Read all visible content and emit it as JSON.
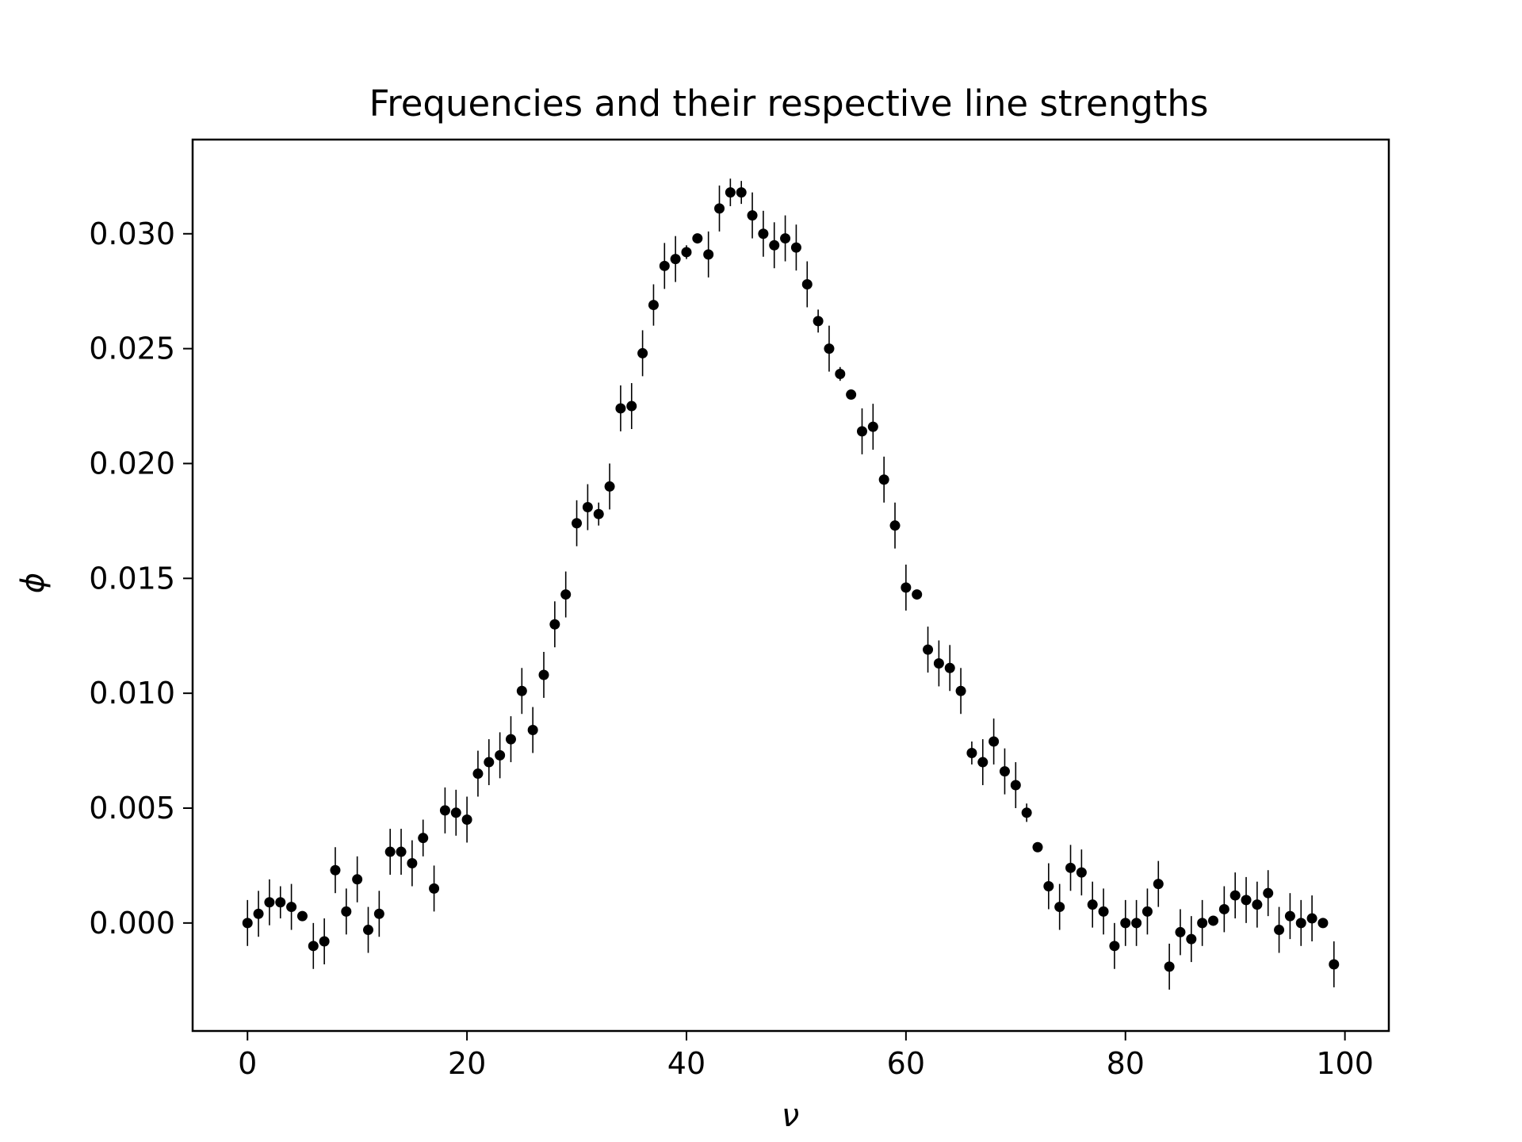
{
  "chart_data": {
    "type": "scatter",
    "title": "Frequencies and their respective line strengths",
    "xlabel": "ν",
    "ylabel": "ϕ",
    "xlim": [
      -5,
      104
    ],
    "ylim": [
      -0.0047,
      0.0341
    ],
    "x_ticks": [
      0,
      20,
      40,
      60,
      80,
      100
    ],
    "x_tick_labels": [
      "0",
      "20",
      "40",
      "60",
      "80",
      "100"
    ],
    "y_ticks": [
      0.0,
      0.005,
      0.01,
      0.015,
      0.02,
      0.025,
      0.03
    ],
    "y_tick_labels": [
      "0.000",
      "0.005",
      "0.010",
      "0.015",
      "0.020",
      "0.025",
      "0.030"
    ],
    "grid": false,
    "legend": false,
    "marker_color": "#000000",
    "series": [
      {
        "x": [
          0,
          1,
          2,
          3,
          4,
          5,
          6,
          7,
          8,
          9,
          10,
          11,
          12,
          13,
          14,
          15,
          16,
          17,
          18,
          19,
          20,
          21,
          22,
          23,
          24,
          25,
          26,
          27,
          28,
          29,
          30,
          31,
          32,
          33,
          34,
          35,
          36,
          37,
          38,
          39,
          40,
          41,
          42,
          43,
          44,
          45,
          46,
          47,
          48,
          49,
          50,
          51,
          52,
          53,
          54,
          55,
          56,
          57,
          58,
          59,
          60,
          61,
          62,
          63,
          64,
          65,
          66,
          67,
          68,
          69,
          70,
          71,
          72,
          73,
          74,
          75,
          76,
          77,
          78,
          79,
          80,
          81,
          82,
          83,
          84,
          85,
          86,
          87,
          88,
          89,
          90,
          91,
          92,
          93,
          94,
          95,
          96,
          97,
          98,
          99
        ],
        "y": [
          0.0,
          0.0004,
          0.0009,
          0.0009,
          0.0007,
          0.0003,
          -0.001,
          -0.0008,
          0.0023,
          0.0005,
          0.0019,
          -0.0003,
          0.0004,
          0.0031,
          0.0031,
          0.0026,
          0.0037,
          0.0015,
          0.0049,
          0.0048,
          0.0045,
          0.0065,
          0.007,
          0.0073,
          0.008,
          0.0101,
          0.0084,
          0.0108,
          0.013,
          0.0143,
          0.0174,
          0.0181,
          0.0178,
          0.019,
          0.0224,
          0.0225,
          0.0248,
          0.0269,
          0.0286,
          0.0289,
          0.0292,
          0.0298,
          0.0291,
          0.0311,
          0.0318,
          0.0318,
          0.0308,
          0.03,
          0.0295,
          0.0298,
          0.0294,
          0.0278,
          0.0262,
          0.025,
          0.0239,
          0.023,
          0.0214,
          0.0216,
          0.0193,
          0.0173,
          0.0146,
          0.0143,
          0.0119,
          0.0113,
          0.0111,
          0.0101,
          0.0074,
          0.007,
          0.0079,
          0.0066,
          0.006,
          0.0048,
          0.0033,
          0.0016,
          0.0007,
          0.0024,
          0.0022,
          0.0008,
          0.0005,
          -0.001,
          0.0,
          0.0,
          0.0005,
          0.0017,
          -0.0019,
          -0.0004,
          -0.0007,
          0.0,
          0.0001,
          0.0006,
          0.0012,
          0.001,
          0.0008,
          0.0013,
          -0.0003,
          0.0003,
          0.0,
          0.0002,
          0.0,
          -0.0018
        ],
        "yerr": [
          0.001,
          0.001,
          0.001,
          0.0007,
          0.001,
          0.0002,
          0.001,
          0.001,
          0.001,
          0.001,
          0.001,
          0.001,
          0.001,
          0.001,
          0.001,
          0.001,
          0.0008,
          0.001,
          0.001,
          0.001,
          0.001,
          0.001,
          0.001,
          0.001,
          0.001,
          0.001,
          0.001,
          0.001,
          0.001,
          0.001,
          0.001,
          0.001,
          0.0005,
          0.001,
          0.001,
          0.001,
          0.001,
          0.0009,
          0.001,
          0.001,
          0.0003,
          0.0002,
          0.001,
          0.001,
          0.0006,
          0.0005,
          0.001,
          0.001,
          0.001,
          0.001,
          0.001,
          0.001,
          0.0005,
          0.001,
          0.0003,
          0.0001,
          0.001,
          0.001,
          0.001,
          0.001,
          0.001,
          0.0002,
          0.001,
          0.001,
          0.001,
          0.001,
          0.0005,
          0.001,
          0.001,
          0.001,
          0.001,
          0.0004,
          0.0002,
          0.001,
          0.001,
          0.001,
          0.001,
          0.001,
          0.001,
          0.001,
          0.001,
          0.001,
          0.001,
          0.001,
          0.001,
          0.001,
          0.001,
          0.001,
          0.0002,
          0.001,
          0.001,
          0.001,
          0.001,
          0.001,
          0.001,
          0.001,
          0.001,
          0.001,
          0.0001,
          0.001
        ]
      }
    ]
  }
}
